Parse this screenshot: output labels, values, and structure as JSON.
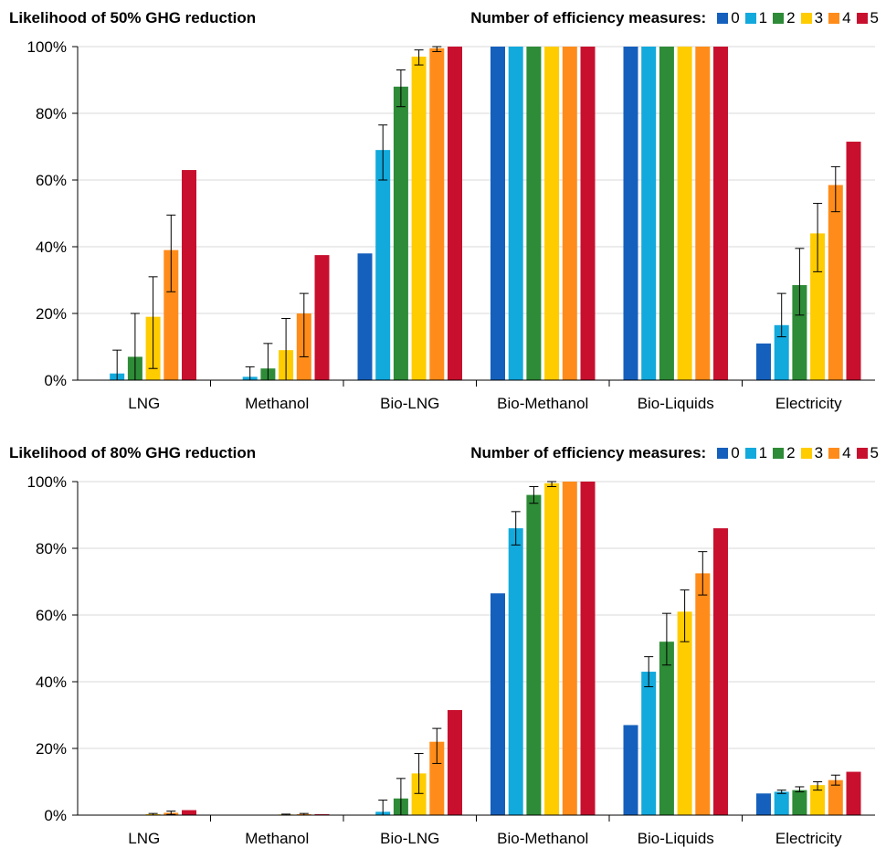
{
  "legend": {
    "title": "Number of efficiency measures:",
    "items": [
      "0",
      "1",
      "2",
      "3",
      "4",
      "5"
    ],
    "colors": [
      "#1560bd",
      "#12a9dc",
      "#2e8b37",
      "#ffcc00",
      "#ff8c1a",
      "#c8102e"
    ]
  },
  "chart_data": [
    {
      "type": "bar",
      "title": "Likelihood of 50% GHG reduction",
      "categories": [
        "LNG",
        "Methanol",
        "Bio-LNG",
        "Bio-Methanol",
        "Bio-Liquids",
        "Electricity"
      ],
      "ylim": [
        0,
        100
      ],
      "yticks": [
        "0%",
        "20%",
        "40%",
        "60%",
        "80%",
        "100%"
      ],
      "grid": true,
      "legend_position": "top-right",
      "series": [
        {
          "name": "0",
          "values": [
            0,
            0,
            38,
            100,
            100,
            11
          ],
          "err_low": [
            0,
            0,
            0,
            0,
            0,
            0
          ],
          "err_high": [
            0,
            0,
            0,
            0,
            0,
            0
          ]
        },
        {
          "name": "1",
          "values": [
            2,
            1,
            69,
            100,
            100,
            16.5
          ],
          "err_low": [
            0,
            0,
            60,
            100,
            100,
            13
          ],
          "err_high": [
            9,
            4,
            76.5,
            100,
            100,
            26
          ]
        },
        {
          "name": "2",
          "values": [
            7,
            3.5,
            88,
            100,
            100,
            28.5
          ],
          "err_low": [
            0,
            0,
            82,
            100,
            100,
            19.5
          ],
          "err_high": [
            20,
            11,
            93,
            100,
            100,
            39.5
          ]
        },
        {
          "name": "3",
          "values": [
            19,
            9,
            97,
            100,
            100,
            44
          ],
          "err_low": [
            3.5,
            0,
            94.5,
            100,
            100,
            32.5
          ],
          "err_high": [
            31,
            18.5,
            99,
            100,
            100,
            53
          ]
        },
        {
          "name": "4",
          "values": [
            39,
            20,
            99.5,
            100,
            100,
            58.5
          ],
          "err_low": [
            26.5,
            7,
            98.5,
            100,
            100,
            50.5
          ],
          "err_high": [
            49.5,
            26,
            100,
            100,
            100,
            64
          ]
        },
        {
          "name": "5",
          "values": [
            63,
            37.5,
            100,
            100,
            100,
            71.5
          ],
          "err_low": [
            63,
            37.5,
            100,
            100,
            100,
            71.5
          ],
          "err_high": [
            63,
            37.5,
            100,
            100,
            100,
            71.5
          ]
        }
      ]
    },
    {
      "type": "bar",
      "title": "Likelihood of 80% GHG reduction",
      "categories": [
        "LNG",
        "Methanol",
        "Bio-LNG",
        "Bio-Methanol",
        "Bio-Liquids",
        "Electricity"
      ],
      "ylim": [
        0,
        100
      ],
      "yticks": [
        "0%",
        "20%",
        "40%",
        "60%",
        "80%",
        "100%"
      ],
      "grid": true,
      "legend_position": "top-right",
      "series": [
        {
          "name": "0",
          "values": [
            0,
            0,
            0,
            66.5,
            27,
            6.5
          ],
          "err_low": [
            0,
            0,
            0,
            66.5,
            27,
            6.5
          ],
          "err_high": [
            0,
            0,
            0,
            66.5,
            27,
            6.5
          ]
        },
        {
          "name": "1",
          "values": [
            0,
            0,
            1,
            86,
            43,
            7
          ],
          "err_low": [
            0,
            0,
            0,
            81,
            38.5,
            6.5
          ],
          "err_high": [
            0,
            0,
            4.5,
            91,
            47.5,
            7.5
          ]
        },
        {
          "name": "2",
          "values": [
            0,
            0,
            5,
            96,
            52,
            7.5
          ],
          "err_low": [
            0,
            0,
            0,
            93.5,
            45,
            7
          ],
          "err_high": [
            0,
            0,
            11,
            98.5,
            60.5,
            8.5
          ]
        },
        {
          "name": "3",
          "values": [
            0.3,
            0.2,
            12.5,
            99.5,
            61,
            9
          ],
          "err_low": [
            0,
            0,
            6.5,
            98.5,
            52,
            7.5
          ],
          "err_high": [
            0.5,
            0.3,
            18.5,
            100,
            67.5,
            10
          ]
        },
        {
          "name": "4",
          "values": [
            0.7,
            0.3,
            22,
            100,
            72.5,
            10.5
          ],
          "err_low": [
            0.2,
            0,
            15.5,
            100,
            66,
            9
          ],
          "err_high": [
            1.2,
            0.5,
            26,
            100,
            79,
            12
          ]
        },
        {
          "name": "5",
          "values": [
            1.5,
            0.3,
            31.5,
            100,
            86,
            13
          ],
          "err_low": [
            1.5,
            0.3,
            31.5,
            100,
            86,
            13
          ],
          "err_high": [
            1.5,
            0.3,
            31.5,
            100,
            86,
            13
          ]
        }
      ]
    }
  ]
}
